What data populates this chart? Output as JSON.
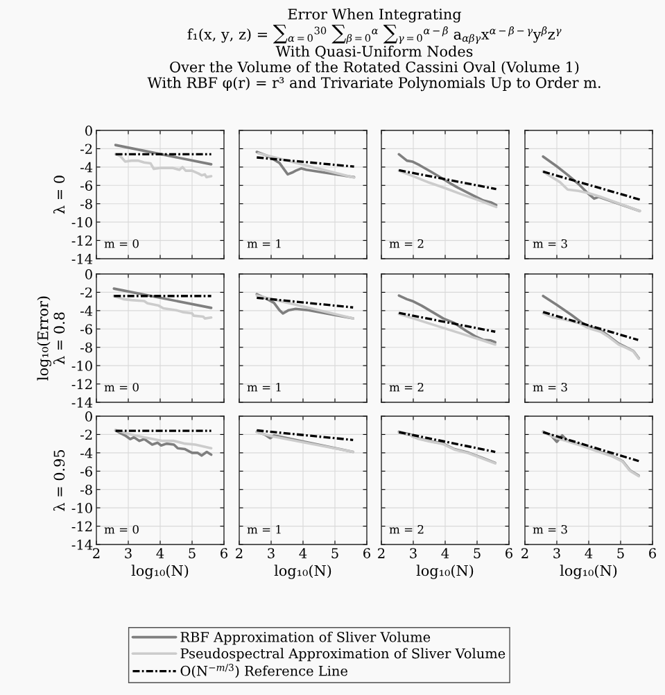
{
  "chart_data": [
    {
      "type": "line",
      "title": "Error When Integrating\nf₁(x, y, z) = ∑$_{α=0}$$^{30}$ ∑$_{β=0}$$^{α}$ ∑$_{γ=0}$$^{α−β}$ a$_{αβγ}$x$^{α−β−γ}$y$^{β}$z$^{γ}$\nWith Quasi-Uniform Nodes\nOver the Volume of the Rotated Cassini Oval (Volume 1)\nWith RBF φ(r) = r³ and Trivariate Polynomials Up to Order m.",
      "ylabel": "λ = 0",
      "xlim": [
        2,
        6
      ],
      "xticks": [
        2,
        3,
        4,
        5,
        6
      ],
      "ylim": [
        -14,
        0
      ],
      "yticks": [
        -14,
        -12,
        -10,
        -8,
        -6,
        -4,
        -2,
        0
      ],
      "grid": true,
      "tick_labels": "y",
      "legend": "bottom",
      "annotations": [
        "m = 0"
      ],
      "series": [
        {
          "name": "RBF Approximation of Sliver Volume",
          "color": "#7f7f7f",
          "x": [
            2.6,
            5.6
          ],
          "values": [
            -1.6,
            -3.7
          ]
        },
        {
          "name": "Pseudospectral Approximation of Sliver Volume",
          "color": "#cccccc",
          "x": [
            2.6,
            2.75,
            2.9,
            3.1,
            3.3,
            3.5,
            3.7,
            3.8,
            4.0,
            4.4,
            4.6,
            4.7,
            4.8,
            5.0,
            5.2,
            5.3,
            5.4,
            5.45,
            5.6
          ],
          "values": [
            -2.6,
            -2.8,
            -3.4,
            -3.3,
            -3.3,
            -3.5,
            -3.6,
            -4.2,
            -4.1,
            -4.1,
            -4.3,
            -4.0,
            -4.4,
            -4.4,
            -4.7,
            -4.9,
            -4.8,
            -5.1,
            -5.0
          ]
        },
        {
          "name": "O(N$^{−m/3}$) Reference Line",
          "color": "#000000",
          "line_style": "dashdot",
          "x": [
            2.6,
            5.6
          ],
          "values": [
            -2.6,
            -2.6
          ]
        }
      ]
    },
    {
      "type": "line",
      "xlim": [
        2,
        6
      ],
      "xticks": [
        2,
        3,
        4,
        5,
        6
      ],
      "ylim": [
        -14,
        0
      ],
      "yticks": [
        -14,
        -12,
        -10,
        -8,
        -6,
        -4,
        -2,
        0
      ],
      "grid": true,
      "tick_labels": false,
      "annotations": [
        "m = 1"
      ],
      "series": [
        {
          "color": "#7f7f7f",
          "x": [
            2.55,
            2.9,
            3.26,
            3.52,
            3.66,
            3.77,
            3.94,
            4.1,
            5.6
          ],
          "values": [
            -2.35,
            -2.8,
            -3.55,
            -4.8,
            -4.6,
            -4.4,
            -4.15,
            -4.3,
            -5.1
          ]
        },
        {
          "color": "#cccccc",
          "x": [
            2.6,
            5.6
          ],
          "values": [
            -2.5,
            -5.15
          ]
        },
        {
          "color": "#000000",
          "line_style": "dashdot",
          "x": [
            2.55,
            5.6
          ],
          "values": [
            -2.95,
            -3.95
          ]
        }
      ]
    },
    {
      "type": "line",
      "xlim": [
        2,
        6
      ],
      "xticks": [
        2,
        3,
        4,
        5,
        6
      ],
      "ylim": [
        -14,
        0
      ],
      "yticks": [
        -14,
        -12,
        -10,
        -8,
        -6,
        -4,
        -2,
        0
      ],
      "grid": true,
      "tick_labels": false,
      "annotations": [
        "m = 2"
      ],
      "series": [
        {
          "color": "#7f7f7f",
          "x": [
            2.55,
            2.8,
            2.97,
            3.2,
            3.6,
            3.89,
            4.17,
            4.4,
            4.74,
            4.97,
            5.2,
            5.43,
            5.6
          ],
          "values": [
            -2.6,
            -3.3,
            -3.4,
            -3.8,
            -4.6,
            -5.2,
            -5.8,
            -6.25,
            -6.85,
            -7.25,
            -7.65,
            -7.85,
            -8.15
          ]
        },
        {
          "color": "#cccccc",
          "x": [
            2.55,
            3.0,
            3.5,
            4.0,
            4.5,
            5.0,
            5.6
          ],
          "values": [
            -4.4,
            -5.0,
            -5.7,
            -6.3,
            -6.95,
            -7.55,
            -8.35
          ]
        },
        {
          "color": "#000000",
          "line_style": "dashdot",
          "x": [
            2.55,
            5.6
          ],
          "values": [
            -4.35,
            -6.4
          ]
        }
      ]
    },
    {
      "type": "line",
      "xlim": [
        2,
        6
      ],
      "xticks": [
        2,
        3,
        4,
        5,
        6
      ],
      "ylim": [
        -14,
        0
      ],
      "yticks": [
        -14,
        -12,
        -10,
        -8,
        -6,
        -4,
        -2,
        0
      ],
      "grid": true,
      "tick_labels": false,
      "annotations": [
        "m = 3"
      ],
      "series": [
        {
          "color": "#7f7f7f",
          "x": [
            2.57,
            2.99,
            3.34,
            3.68,
            3.97,
            4.17,
            4.31,
            5.6
          ],
          "values": [
            -2.85,
            -3.9,
            -4.85,
            -5.85,
            -6.85,
            -7.45,
            -7.25,
            -8.8
          ]
        },
        {
          "color": "#cccccc",
          "x": [
            2.57,
            2.82,
            3.1,
            3.34,
            3.68,
            4.0,
            4.37,
            5.6
          ],
          "values": [
            -4.5,
            -5.05,
            -5.65,
            -6.45,
            -6.6,
            -6.85,
            -7.25,
            -8.8
          ]
        },
        {
          "color": "#000000",
          "line_style": "dashdot",
          "x": [
            2.57,
            5.6
          ],
          "values": [
            -4.5,
            -7.55
          ]
        }
      ]
    },
    {
      "type": "line",
      "ylabel": "log₁₀(Error)\nλ = 0.8",
      "xlim": [
        2,
        6
      ],
      "xticks": [
        2,
        3,
        4,
        5,
        6
      ],
      "ylim": [
        -14,
        0
      ],
      "yticks": [
        -14,
        -12,
        -10,
        -8,
        -6,
        -4,
        -2,
        0
      ],
      "grid": true,
      "tick_labels": "y",
      "annotations": [
        "m = 0"
      ],
      "series": [
        {
          "color": "#7f7f7f",
          "x": [
            2.55,
            5.6
          ],
          "values": [
            -1.6,
            -3.7
          ]
        },
        {
          "color": "#cccccc",
          "x": [
            2.55,
            2.85,
            3.1,
            3.5,
            3.6,
            3.95,
            4.1,
            4.5,
            4.7,
            5.0,
            5.05,
            5.35,
            5.4,
            5.6
          ],
          "values": [
            -2.4,
            -2.75,
            -2.85,
            -2.95,
            -3.2,
            -3.45,
            -3.75,
            -3.95,
            -4.15,
            -4.3,
            -4.55,
            -4.65,
            -4.85,
            -4.75
          ]
        },
        {
          "color": "#000000",
          "line_style": "dashdot",
          "x": [
            2.55,
            5.6
          ],
          "values": [
            -2.4,
            -2.4
          ]
        }
      ]
    },
    {
      "type": "line",
      "xlim": [
        2,
        6
      ],
      "xticks": [
        2,
        3,
        4,
        5,
        6
      ],
      "ylim": [
        -14,
        0
      ],
      "yticks": [
        -14,
        -12,
        -10,
        -8,
        -6,
        -4,
        -2,
        0
      ],
      "grid": true,
      "tick_labels": false,
      "annotations": [
        "m = 1"
      ],
      "series": [
        {
          "color": "#7f7f7f",
          "x": [
            2.55,
            2.8,
            3.09,
            3.26,
            3.37,
            3.55,
            3.77,
            4.17,
            5.57
          ],
          "values": [
            -2.2,
            -2.6,
            -3.15,
            -3.95,
            -4.3,
            -3.95,
            -3.8,
            -3.95,
            -4.85
          ]
        },
        {
          "color": "#cccccc",
          "x": [
            2.55,
            5.57
          ],
          "values": [
            -2.35,
            -4.85
          ]
        },
        {
          "color": "#000000",
          "line_style": "dashdot",
          "x": [
            2.55,
            5.57
          ],
          "values": [
            -2.6,
            -3.65
          ]
        }
      ]
    },
    {
      "type": "line",
      "xlim": [
        2,
        6
      ],
      "xticks": [
        2,
        3,
        4,
        5,
        6
      ],
      "ylim": [
        -14,
        0
      ],
      "yticks": [
        -14,
        -12,
        -10,
        -8,
        -6,
        -4,
        -2,
        0
      ],
      "grid": true,
      "tick_labels": false,
      "annotations": [
        "m = 2"
      ],
      "series": [
        {
          "color": "#7f7f7f",
          "x": [
            2.55,
            2.8,
            2.97,
            3.26,
            3.6,
            3.94,
            4.29,
            4.63,
            4.97,
            5.2,
            5.43,
            5.57
          ],
          "values": [
            -2.35,
            -2.75,
            -2.95,
            -3.45,
            -4.15,
            -4.85,
            -5.35,
            -6.15,
            -6.85,
            -7.2,
            -7.25,
            -7.45
          ]
        },
        {
          "color": "#cccccc",
          "x": [
            2.55,
            3.0,
            3.5,
            4.0,
            4.5,
            5.0,
            5.57
          ],
          "values": [
            -4.35,
            -4.85,
            -5.4,
            -5.95,
            -6.5,
            -7.05,
            -7.7
          ]
        },
        {
          "color": "#000000",
          "line_style": "dashdot",
          "x": [
            2.55,
            5.57
          ],
          "values": [
            -4.25,
            -6.3
          ]
        }
      ]
    },
    {
      "type": "line",
      "xlim": [
        2,
        6
      ],
      "xticks": [
        2,
        3,
        4,
        5,
        6
      ],
      "ylim": [
        -14,
        0
      ],
      "yticks": [
        -14,
        -12,
        -10,
        -8,
        -6,
        -4,
        -2,
        0
      ],
      "grid": true,
      "tick_labels": false,
      "annotations": [
        "m = 3"
      ],
      "series": [
        {
          "color": "#7f7f7f",
          "x": [
            2.57,
            2.99,
            3.45,
            3.8,
            4.02,
            4.37,
            4.6,
            4.94,
            5.17,
            5.4,
            5.57
          ],
          "values": [
            -2.4,
            -3.35,
            -4.45,
            -5.35,
            -5.75,
            -6.15,
            -6.7,
            -7.6,
            -8.0,
            -8.4,
            -9.2
          ]
        },
        {
          "color": "#cccccc",
          "x": [
            2.57,
            2.88,
            3.22,
            3.68,
            4.02,
            4.37,
            4.6,
            4.94,
            5.17,
            5.4,
            5.57
          ],
          "values": [
            -4.3,
            -4.75,
            -4.95,
            -5.35,
            -5.95,
            -6.3,
            -6.8,
            -7.7,
            -8.05,
            -8.45,
            -9.25
          ]
        },
        {
          "color": "#000000",
          "line_style": "dashdot",
          "x": [
            2.57,
            5.55
          ],
          "values": [
            -4.15,
            -7.2
          ]
        }
      ]
    },
    {
      "type": "line",
      "ylabel": "λ = 0.95",
      "xlabel": "log₁₀(N)",
      "xlim": [
        2,
        6
      ],
      "xticks": [
        2,
        3,
        4,
        5,
        6
      ],
      "ylim": [
        -14,
        0
      ],
      "yticks": [
        -14,
        -12,
        -10,
        -8,
        -6,
        -4,
        -2,
        0
      ],
      "grid": true,
      "annotations": [
        "m = 0"
      ],
      "series": [
        {
          "color": "#7f7f7f",
          "x": [
            2.6,
            2.78,
            2.9,
            3.06,
            3.18,
            3.35,
            3.5,
            3.75,
            3.92,
            4.03,
            4.2,
            4.43,
            4.55,
            4.78,
            5.0,
            5.17,
            5.3,
            5.46,
            5.6
          ],
          "values": [
            -1.55,
            -1.9,
            -2.1,
            -2.5,
            -2.3,
            -2.7,
            -2.5,
            -3.1,
            -2.9,
            -3.2,
            -3.0,
            -3.1,
            -3.5,
            -3.6,
            -4.0,
            -4.0,
            -4.3,
            -3.9,
            -4.2
          ]
        },
        {
          "color": "#cccccc",
          "x": [
            2.6,
            2.95,
            3.5,
            4.08,
            4.43,
            4.78,
            5.1,
            5.6
          ],
          "values": [
            -1.5,
            -1.9,
            -2.3,
            -2.7,
            -2.7,
            -3.0,
            -3.1,
            -3.5
          ]
        },
        {
          "color": "#000000",
          "line_style": "dashdot",
          "x": [
            2.6,
            5.6
          ],
          "values": [
            -1.6,
            -1.6
          ]
        }
      ]
    },
    {
      "type": "line",
      "xlabel": "log₁₀(N)",
      "xlim": [
        2,
        6
      ],
      "xticks": [
        2,
        3,
        4,
        5,
        6
      ],
      "ylim": [
        -14,
        0
      ],
      "yticks": [
        -14,
        -12,
        -10,
        -8,
        -6,
        -4,
        -2,
        0
      ],
      "grid": true,
      "tick_labels": "x",
      "annotations": [
        "m = 1"
      ],
      "series": [
        {
          "color": "#7f7f7f",
          "x": [
            2.55,
            2.8,
            2.97,
            3.09,
            5.57
          ],
          "values": [
            -1.7,
            -2.0,
            -2.4,
            -2.1,
            -3.9
          ]
        },
        {
          "color": "#cccccc",
          "x": [
            2.55,
            3.03,
            5.57
          ],
          "values": [
            -1.75,
            -2.2,
            -3.9
          ]
        },
        {
          "color": "#000000",
          "line_style": "dashdot",
          "x": [
            2.55,
            5.57
          ],
          "values": [
            -1.55,
            -2.6
          ]
        }
      ]
    },
    {
      "type": "line",
      "xlabel": "log₁₀(N)",
      "xlim": [
        2,
        6
      ],
      "xticks": [
        2,
        3,
        4,
        5,
        6
      ],
      "ylim": [
        -14,
        0
      ],
      "yticks": [
        -14,
        -12,
        -10,
        -8,
        -6,
        -4,
        -2,
        0
      ],
      "grid": true,
      "tick_labels": "x",
      "annotations": [
        "m = 2"
      ],
      "series": [
        {
          "color": "#7f7f7f",
          "x": [
            2.55,
            2.92,
            2.97,
            3.14,
            3.49,
            3.94,
            4.29,
            4.74,
            5.2,
            5.57
          ],
          "values": [
            -1.7,
            -2.0,
            -2.2,
            -2.4,
            -2.7,
            -3.0,
            -3.6,
            -4.0,
            -4.6,
            -5.1
          ]
        },
        {
          "color": "#cccccc",
          "x": [
            2.55,
            2.92,
            3.14,
            3.49,
            3.94,
            4.29,
            4.74,
            5.2,
            5.57
          ],
          "values": [
            -1.8,
            -2.1,
            -2.45,
            -2.75,
            -3.05,
            -3.65,
            -4.05,
            -4.65,
            -5.15
          ]
        },
        {
          "color": "#000000",
          "line_style": "dashdot",
          "x": [
            2.55,
            5.57
          ],
          "values": [
            -1.75,
            -3.9
          ]
        }
      ]
    },
    {
      "type": "line",
      "xlabel": "log₁₀(N)",
      "xlim": [
        2,
        6
      ],
      "xticks": [
        2,
        3,
        4,
        5,
        6
      ],
      "ylim": [
        -14,
        0
      ],
      "yticks": [
        -14,
        -12,
        -10,
        -8,
        -6,
        -4,
        -2,
        0
      ],
      "grid": true,
      "tick_labels": "x",
      "annotations": [
        "m = 3"
      ],
      "series": [
        {
          "color": "#7f7f7f",
          "x": [
            2.57,
            2.82,
            3.0,
            3.17,
            3.34,
            3.8,
            4.37,
            4.71,
            5.06,
            5.29,
            5.57
          ],
          "values": [
            -1.7,
            -2.1,
            -2.8,
            -2.1,
            -2.7,
            -3.2,
            -3.9,
            -4.3,
            -4.9,
            -5.9,
            -6.5
          ]
        },
        {
          "color": "#cccccc",
          "x": [
            2.57,
            2.82,
            3.0,
            3.34,
            3.8,
            4.37,
            4.71,
            5.06,
            5.29,
            5.57
          ],
          "values": [
            -1.75,
            -2.15,
            -2.4,
            -2.75,
            -3.25,
            -3.95,
            -4.35,
            -4.95,
            -5.95,
            -6.55
          ]
        },
        {
          "color": "#000000",
          "line_style": "dashdot",
          "x": [
            2.57,
            5.57
          ],
          "values": [
            -1.75,
            -4.9
          ]
        }
      ]
    }
  ]
}
